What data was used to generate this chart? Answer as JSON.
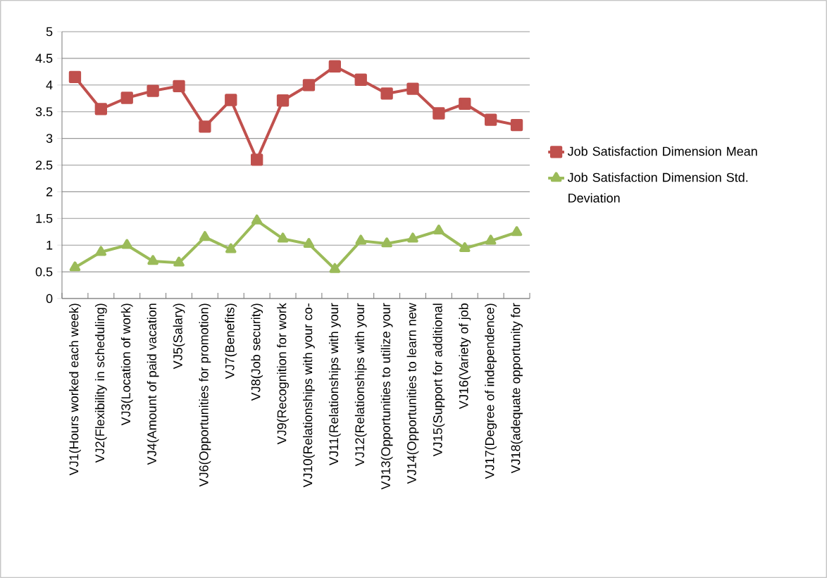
{
  "chart_data": {
    "type": "line",
    "categories": [
      "VJ1(Hours worked each week)",
      "VJ2(Flexibility in scheduling)",
      "VJ3(Location of work)",
      "VJ4(Amount of paid vacation",
      "VJ5(Salary)",
      "VJ6(Opportunities for promotion)",
      "VJ7(Benefits)",
      "VJ8(Job security)",
      "VJ9(Recognition for work",
      "VJ10(Relationships with your co-",
      "VJ11(Relationships with your",
      "VJ12(Relationships with your",
      "VJ13(Opportunities to utilize your",
      "VJ14(Opportunities to learn new",
      "VJ15(Support for additional",
      "VJ16(Variety of job",
      "VJ17(Degree of independence)",
      "VJ18(adequate opportunity for"
    ],
    "series": [
      {
        "name": "Job Satisfaction Dimension Mean",
        "color": "#c0504d",
        "marker": "square",
        "values": [
          4.15,
          3.55,
          3.76,
          3.89,
          3.98,
          3.22,
          3.72,
          2.6,
          3.71,
          4.0,
          4.35,
          4.1,
          3.84,
          3.93,
          3.47,
          3.65,
          3.35,
          3.25
        ]
      },
      {
        "name": "Job Satisfaction Dimension Std. Deviation",
        "color": "#9bbb59",
        "marker": "triangle",
        "values": [
          0.58,
          0.87,
          1.0,
          0.7,
          0.67,
          1.15,
          0.92,
          1.46,
          1.12,
          1.02,
          0.55,
          1.08,
          1.03,
          1.12,
          1.27,
          0.94,
          1.08,
          1.24
        ]
      }
    ],
    "ylim": [
      0,
      5
    ],
    "yticks": [
      0,
      0.5,
      1,
      1.5,
      2,
      2.5,
      3,
      3.5,
      4,
      4.5,
      5
    ],
    "grid": "y",
    "legend": "right",
    "line_style": "solid"
  }
}
